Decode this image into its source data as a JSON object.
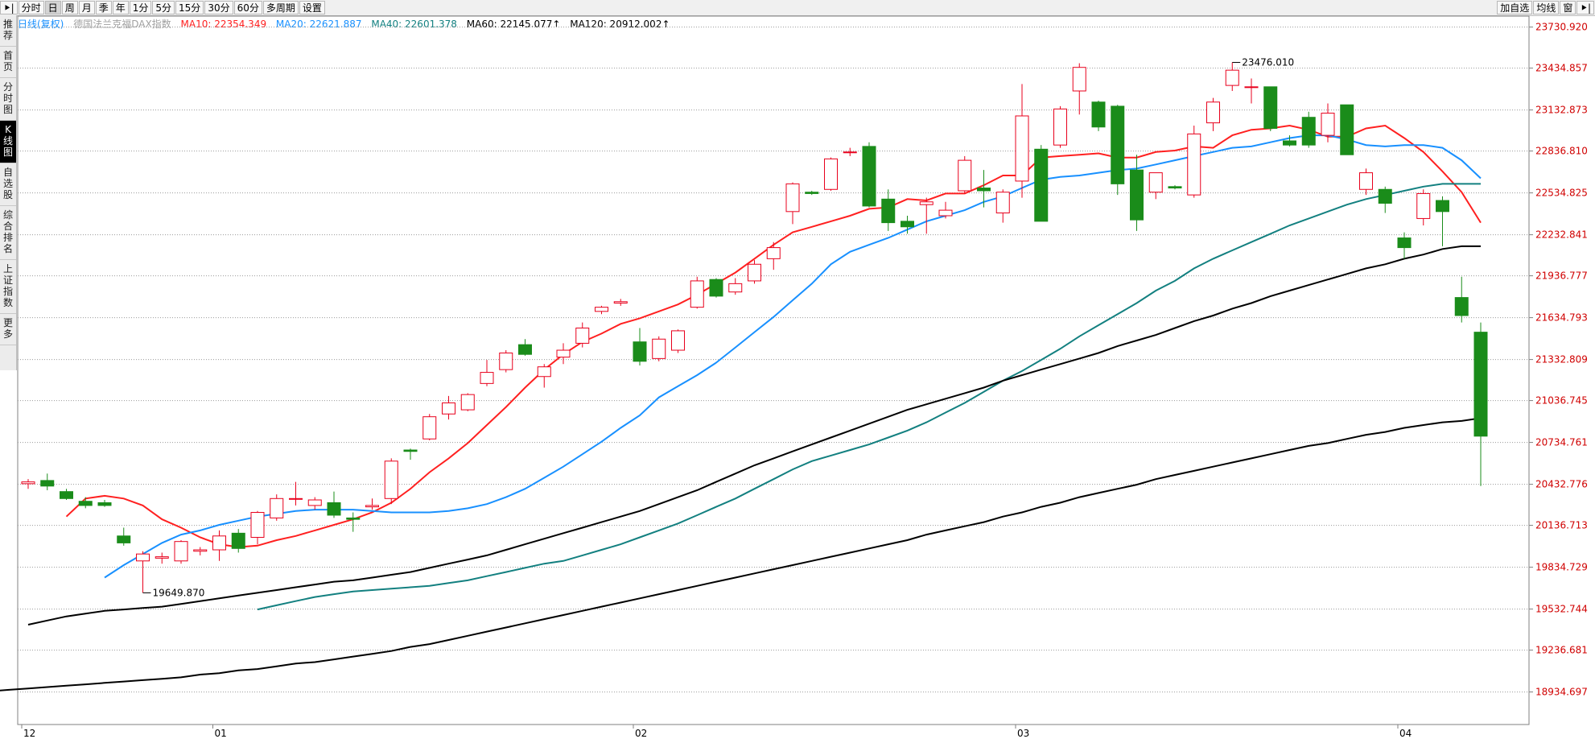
{
  "toolbar": {
    "left_items": [
      {
        "label": "分时",
        "active": false
      },
      {
        "label": "日",
        "active": true
      },
      {
        "label": "周",
        "active": false
      },
      {
        "label": "月",
        "active": false
      },
      {
        "label": "季",
        "active": false
      },
      {
        "label": "年",
        "active": false
      },
      {
        "label": "1分",
        "active": false
      },
      {
        "label": "5分",
        "active": false
      },
      {
        "label": "15分",
        "active": false
      },
      {
        "label": "30分",
        "active": false
      },
      {
        "label": "60分",
        "active": false
      },
      {
        "label": "多周期",
        "active": false
      },
      {
        "label": "设置",
        "active": false
      }
    ],
    "right_items": [
      "加自选",
      "均线",
      "窗"
    ]
  },
  "sidebar": {
    "items": [
      {
        "label": "推荐",
        "active": false
      },
      {
        "label": "首页",
        "active": false
      },
      {
        "label": "分时图",
        "active": false
      },
      {
        "label": "K线图",
        "active": true
      },
      {
        "label": "自选股",
        "active": false
      },
      {
        "label": "综合排名",
        "active": false
      },
      {
        "label": "上证指数",
        "active": false
      },
      {
        "label": "更多",
        "active": false
      }
    ]
  },
  "legend": {
    "mode": "日线(复权)",
    "name": "德国法兰克福DAX指数",
    "ma10": "MA10: 22354.349",
    "ma20": "MA20: 22621.887",
    "ma40": "MA40: 22601.378",
    "ma60": "MA60: 22145.077↑",
    "ma120": "MA120: 20912.002↑"
  },
  "colors": {
    "up": "#e8001c",
    "down": "#1a8c1a",
    "ma10": "#ff2020",
    "ma20": "#1890ff",
    "ma40": "#138080",
    "ma60": "#000000",
    "ma120": "#000000",
    "axis_label": "#d00000"
  },
  "chart_data": {
    "type": "candlestick",
    "yticks": [
      18934.697,
      19236.681,
      19532.744,
      19834.729,
      20136.713,
      20432.776,
      20734.761,
      21036.745,
      21332.809,
      21634.793,
      21936.777,
      22232.841,
      22534.825,
      22836.81,
      23132.873,
      23434.857,
      23730.92
    ],
    "ytick_labels": [
      "18934.697",
      "19236.681",
      "19532.744",
      "19834.729",
      "20136.713",
      "20432.776",
      "20734.761",
      "21036.745",
      "21332.809",
      "21634.793",
      "21936.777",
      "22232.841",
      "22534.825",
      "22836.810",
      "23132.873",
      "23434.857",
      "23730.920"
    ],
    "ylim": [
      18700,
      23810
    ],
    "xlabels": [
      {
        "label": "12",
        "index": 0
      },
      {
        "label": "01",
        "index": 10
      },
      {
        "label": "02",
        "index": 32
      },
      {
        "label": "03",
        "index": 52
      },
      {
        "label": "04",
        "index": 72
      }
    ],
    "annotations": [
      {
        "text": "19649.870",
        "index": 6,
        "value": 19649.87,
        "side": "low"
      },
      {
        "text": "23476.010",
        "index": 63,
        "value": 23476.01,
        "side": "high"
      }
    ],
    "candles": [
      {
        "o": 20437,
        "h": 20470,
        "l": 20400,
        "c": 20450
      },
      {
        "o": 20460,
        "h": 20510,
        "l": 20390,
        "c": 20420
      },
      {
        "o": 20380,
        "h": 20400,
        "l": 20320,
        "c": 20330
      },
      {
        "o": 20310,
        "h": 20340,
        "l": 20260,
        "c": 20280
      },
      {
        "o": 20300,
        "h": 20320,
        "l": 20270,
        "c": 20280
      },
      {
        "o": 20060,
        "h": 20120,
        "l": 19990,
        "c": 20010
      },
      {
        "o": 19880,
        "h": 19950,
        "l": 19650,
        "c": 19930
      },
      {
        "o": 19900,
        "h": 19940,
        "l": 19860,
        "c": 19910
      },
      {
        "o": 19880,
        "h": 20030,
        "l": 19860,
        "c": 20020
      },
      {
        "o": 19950,
        "h": 19980,
        "l": 19920,
        "c": 19960
      },
      {
        "o": 19960,
        "h": 20100,
        "l": 19880,
        "c": 20060
      },
      {
        "o": 20080,
        "h": 20110,
        "l": 19940,
        "c": 19970
      },
      {
        "o": 20050,
        "h": 20240,
        "l": 20000,
        "c": 20230
      },
      {
        "o": 20190,
        "h": 20360,
        "l": 20170,
        "c": 20330
      },
      {
        "o": 20330,
        "h": 20450,
        "l": 20280,
        "c": 20330
      },
      {
        "o": 20280,
        "h": 20340,
        "l": 20250,
        "c": 20320
      },
      {
        "o": 20300,
        "h": 20380,
        "l": 20190,
        "c": 20210
      },
      {
        "o": 20190,
        "h": 20230,
        "l": 20090,
        "c": 20180
      },
      {
        "o": 20270,
        "h": 20330,
        "l": 20250,
        "c": 20280
      },
      {
        "o": 20330,
        "h": 20620,
        "l": 20290,
        "c": 20600
      },
      {
        "o": 20680,
        "h": 20690,
        "l": 20610,
        "c": 20670
      },
      {
        "o": 20760,
        "h": 20940,
        "l": 20750,
        "c": 20920
      },
      {
        "o": 20940,
        "h": 21070,
        "l": 20900,
        "c": 21020
      },
      {
        "o": 20970,
        "h": 21090,
        "l": 20960,
        "c": 21080
      },
      {
        "o": 21160,
        "h": 21330,
        "l": 21140,
        "c": 21240
      },
      {
        "o": 21260,
        "h": 21400,
        "l": 21240,
        "c": 21380
      },
      {
        "o": 21440,
        "h": 21480,
        "l": 21360,
        "c": 21370
      },
      {
        "o": 21210,
        "h": 21300,
        "l": 21130,
        "c": 21280
      },
      {
        "o": 21350,
        "h": 21450,
        "l": 21300,
        "c": 21400
      },
      {
        "o": 21450,
        "h": 21600,
        "l": 21420,
        "c": 21560
      },
      {
        "o": 21680,
        "h": 21720,
        "l": 21660,
        "c": 21710
      },
      {
        "o": 21740,
        "h": 21770,
        "l": 21720,
        "c": 21750
      },
      {
        "o": 21460,
        "h": 21560,
        "l": 21290,
        "c": 21320
      },
      {
        "o": 21340,
        "h": 21500,
        "l": 21320,
        "c": 21480
      },
      {
        "o": 21400,
        "h": 21550,
        "l": 21380,
        "c": 21540
      },
      {
        "o": 21710,
        "h": 21930,
        "l": 21700,
        "c": 21900
      },
      {
        "o": 21910,
        "h": 21920,
        "l": 21780,
        "c": 21790
      },
      {
        "o": 21820,
        "h": 21920,
        "l": 21800,
        "c": 21880
      },
      {
        "o": 21900,
        "h": 22050,
        "l": 21880,
        "c": 22020
      },
      {
        "o": 22060,
        "h": 22180,
        "l": 21980,
        "c": 22140
      },
      {
        "o": 22400,
        "h": 22610,
        "l": 22310,
        "c": 22600
      },
      {
        "o": 22540,
        "h": 22550,
        "l": 22520,
        "c": 22530
      },
      {
        "o": 22560,
        "h": 22790,
        "l": 22550,
        "c": 22780
      },
      {
        "o": 22830,
        "h": 22860,
        "l": 22800,
        "c": 22830
      },
      {
        "o": 22870,
        "h": 22900,
        "l": 22430,
        "c": 22440
      },
      {
        "o": 22490,
        "h": 22560,
        "l": 22260,
        "c": 22320
      },
      {
        "o": 22330,
        "h": 22370,
        "l": 22240,
        "c": 22290
      },
      {
        "o": 22450,
        "h": 22500,
        "l": 22240,
        "c": 22470
      },
      {
        "o": 22370,
        "h": 22470,
        "l": 22350,
        "c": 22410
      },
      {
        "o": 22550,
        "h": 22800,
        "l": 22530,
        "c": 22770
      },
      {
        "o": 22570,
        "h": 22700,
        "l": 22430,
        "c": 22550
      },
      {
        "o": 22390,
        "h": 22560,
        "l": 22320,
        "c": 22540
      },
      {
        "o": 22620,
        "h": 23320,
        "l": 22500,
        "c": 23090
      },
      {
        "o": 22850,
        "h": 22880,
        "l": 22330,
        "c": 22330
      },
      {
        "o": 22880,
        "h": 23160,
        "l": 22860,
        "c": 23140
      },
      {
        "o": 23270,
        "h": 23470,
        "l": 23100,
        "c": 23440
      },
      {
        "o": 23190,
        "h": 23200,
        "l": 22980,
        "c": 23010
      },
      {
        "o": 23160,
        "h": 23170,
        "l": 22520,
        "c": 22600
      },
      {
        "o": 22700,
        "h": 22810,
        "l": 22260,
        "c": 22340
      },
      {
        "o": 22540,
        "h": 22650,
        "l": 22490,
        "c": 22680
      },
      {
        "o": 22580,
        "h": 22590,
        "l": 22560,
        "c": 22570
      },
      {
        "o": 22520,
        "h": 23020,
        "l": 22500,
        "c": 22960
      },
      {
        "o": 23040,
        "h": 23220,
        "l": 22980,
        "c": 23190
      },
      {
        "o": 23310,
        "h": 23476,
        "l": 23270,
        "c": 23420
      },
      {
        "o": 23300,
        "h": 23360,
        "l": 23180,
        "c": 23300
      },
      {
        "o": 23300,
        "h": 23300,
        "l": 22980,
        "c": 23000
      },
      {
        "o": 22910,
        "h": 22950,
        "l": 22870,
        "c": 22880
      },
      {
        "o": 23080,
        "h": 23120,
        "l": 22860,
        "c": 22880
      },
      {
        "o": 22950,
        "h": 23180,
        "l": 22900,
        "c": 23110
      },
      {
        "o": 23170,
        "h": 23170,
        "l": 22810,
        "c": 22810
      },
      {
        "o": 22560,
        "h": 22710,
        "l": 22520,
        "c": 22680
      },
      {
        "o": 22560,
        "h": 22580,
        "l": 22390,
        "c": 22460
      },
      {
        "o": 22210,
        "h": 22250,
        "l": 22060,
        "c": 22140
      },
      {
        "o": 22350,
        "h": 22560,
        "l": 22300,
        "c": 22530
      },
      {
        "o": 22480,
        "h": 22510,
        "l": 22150,
        "c": 22400
      },
      {
        "o": 21780,
        "h": 21930,
        "l": 21600,
        "c": 21650
      },
      {
        "o": 21530,
        "h": 21600,
        "l": 20420,
        "c": 20780
      }
    ],
    "series": [
      {
        "name": "MA10",
        "values": [
          20200,
          20330,
          20350,
          20330,
          20280,
          20180,
          20120,
          20050,
          20000,
          19980,
          19990,
          20030,
          20060,
          20100,
          20140,
          20180,
          20230,
          20300,
          20400,
          20520,
          20620,
          20730,
          20860,
          20990,
          21130,
          21260,
          21370,
          21460,
          21520,
          21590,
          21630,
          21680,
          21730,
          21800,
          21880,
          21960,
          22060,
          22160,
          22250,
          22290,
          22330,
          22370,
          22420,
          22430,
          22490,
          22480,
          22530,
          22530,
          22590,
          22660,
          22660,
          22790,
          22800,
          22810,
          22820,
          22790,
          22790,
          22830,
          22840,
          22870,
          22860,
          22950,
          22990,
          23000,
          23020,
          22990,
          22940,
          22940,
          23000,
          23020,
          22930,
          22830,
          22690,
          22540,
          22320
        ]
      },
      {
        "name": "MA20",
        "values": [
          19760,
          19850,
          19930,
          20010,
          20070,
          20100,
          20140,
          20170,
          20200,
          20220,
          20240,
          20250,
          20250,
          20250,
          20240,
          20230,
          20230,
          20230,
          20240,
          20260,
          20290,
          20340,
          20400,
          20480,
          20560,
          20650,
          20740,
          20840,
          20930,
          21060,
          21140,
          21220,
          21310,
          21420,
          21530,
          21640,
          21760,
          21880,
          22020,
          22110,
          22160,
          22210,
          22270,
          22330,
          22370,
          22410,
          22470,
          22510,
          22570,
          22630,
          22650,
          22660,
          22680,
          22700,
          22710,
          22740,
          22770,
          22800,
          22830,
          22860,
          22870,
          22900,
          22930,
          22950,
          22950,
          22920,
          22880,
          22870,
          22880,
          22880,
          22860,
          22770,
          22640
        ]
      },
      {
        "name": "MA40",
        "values": [
          19530,
          19560,
          19590,
          19620,
          19640,
          19660,
          19670,
          19680,
          19690,
          19700,
          19720,
          19740,
          19770,
          19800,
          19830,
          19860,
          19880,
          19920,
          19960,
          20000,
          20050,
          20100,
          20150,
          20210,
          20270,
          20330,
          20400,
          20470,
          20540,
          20600,
          20640,
          20680,
          20720,
          20770,
          20820,
          20880,
          20950,
          21020,
          21100,
          21180,
          21250,
          21330,
          21410,
          21500,
          21580,
          21660,
          21740,
          21830,
          21900,
          21990,
          22060,
          22120,
          22180,
          22240,
          22300,
          22350,
          22400,
          22450,
          22490,
          22520,
          22550,
          22580,
          22600,
          22600,
          22600
        ]
      },
      {
        "name": "MA60",
        "values": [
          19420,
          19450,
          19480,
          19500,
          19520,
          19530,
          19540,
          19550,
          19570,
          19590,
          19610,
          19630,
          19650,
          19670,
          19690,
          19710,
          19730,
          19740,
          19760,
          19780,
          19800,
          19830,
          19860,
          19890,
          19920,
          19960,
          20000,
          20040,
          20080,
          20120,
          20160,
          20200,
          20240,
          20290,
          20340,
          20390,
          20450,
          20510,
          20570,
          20620,
          20670,
          20720,
          20770,
          20820,
          20870,
          20920,
          20970,
          21010,
          21050,
          21090,
          21130,
          21180,
          21220,
          21260,
          21300,
          21340,
          21380,
          21430,
          21470,
          21510,
          21560,
          21610,
          21650,
          21700,
          21740,
          21790,
          21830,
          21870,
          21910,
          21950,
          21990,
          22020,
          22060,
          22090,
          22130,
          22150,
          22150
        ]
      },
      {
        "name": "MA120",
        "values": [
          18880,
          18890,
          18910,
          18930,
          18940,
          18950,
          18960,
          18970,
          18980,
          18990,
          19000,
          19010,
          19020,
          19030,
          19040,
          19060,
          19070,
          19090,
          19100,
          19120,
          19140,
          19150,
          19170,
          19190,
          19210,
          19230,
          19260,
          19280,
          19310,
          19340,
          19370,
          19400,
          19430,
          19460,
          19490,
          19520,
          19550,
          19580,
          19610,
          19640,
          19670,
          19700,
          19730,
          19760,
          19790,
          19820,
          19850,
          19880,
          19910,
          19940,
          19970,
          20000,
          20030,
          20070,
          20100,
          20130,
          20160,
          20200,
          20230,
          20270,
          20300,
          20340,
          20370,
          20400,
          20430,
          20470,
          20500,
          20530,
          20560,
          20590,
          20620,
          20650,
          20680,
          20710,
          20730,
          20760,
          20790,
          20810,
          20840,
          20860,
          20880,
          20890,
          20910
        ]
      }
    ]
  }
}
